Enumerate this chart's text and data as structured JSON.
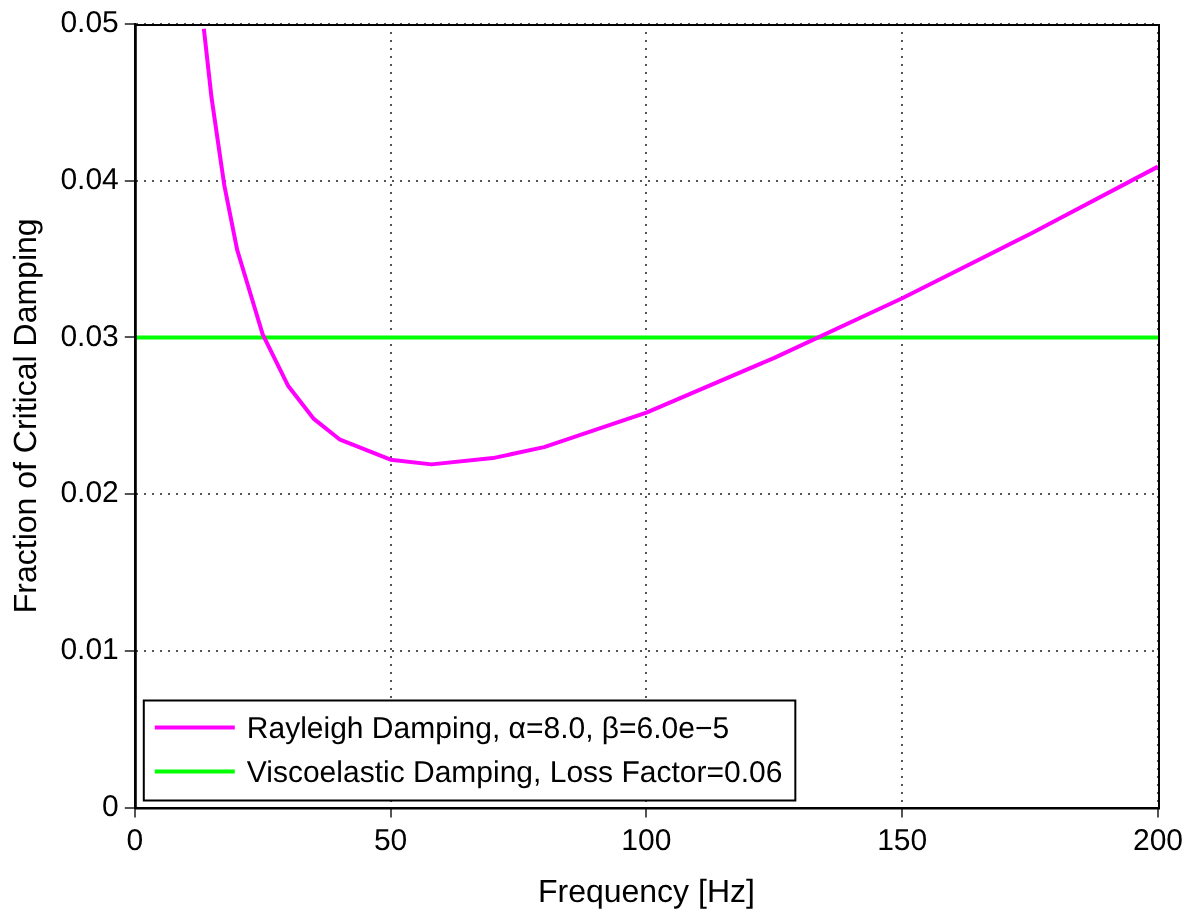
{
  "chart_data": {
    "type": "line",
    "xlabel": "Frequency [Hz]",
    "ylabel": "Fraction of Critical Damping",
    "xlim": [
      0,
      200
    ],
    "xticks": [
      0,
      50,
      100,
      150,
      200
    ],
    "ylim": [
      0,
      0.05
    ],
    "yticks": [
      0,
      0.01,
      0.02,
      0.03,
      0.04,
      0.05
    ],
    "grid": true,
    "legend": "bottom left",
    "marker": "none",
    "line_style": "solid",
    "series": [
      {
        "name": "Rayleigh Damping, α=8.0, β=6.0e−5",
        "color": "#ff00ff",
        "x": [
          13.5,
          15,
          17.5,
          20,
          25,
          30,
          35,
          40,
          50,
          58,
          70,
          80,
          100,
          125,
          150,
          175,
          200
        ],
        "values": [
          0.0497,
          0.0453,
          0.0397,
          0.0356,
          0.0302,
          0.0269,
          0.0248,
          0.0235,
          0.0222,
          0.0219,
          0.0223,
          0.023,
          0.0252,
          0.0287,
          0.0325,
          0.0366,
          0.0409
        ]
      },
      {
        "name": "Viscoelastic Damping, Loss Factor=0.06",
        "color": "#00ff00",
        "x": [
          0,
          200
        ],
        "values": [
          0.03,
          0.03
        ]
      }
    ]
  }
}
